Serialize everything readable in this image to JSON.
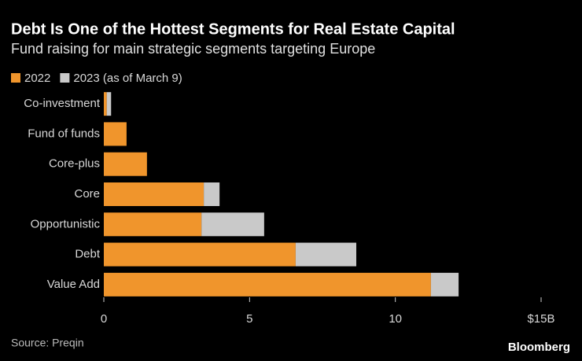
{
  "chart_data": {
    "type": "stacked-barh",
    "title": "Debt Is One of the Hottest Segments for Real Estate Capital",
    "subtitle": "Fund raising for main strategic segments targeting Europe",
    "categories": [
      "Co-investment",
      "Fund of funds",
      "Core-plus",
      "Core",
      "Opportunistic",
      "Debt",
      "Value Add"
    ],
    "series": [
      {
        "name": "2022",
        "color": "#f0952c",
        "values": [
          0.1,
          0.78,
          1.48,
          3.43,
          3.35,
          6.58,
          11.22
        ]
      },
      {
        "name": "2023 (as of March 9)",
        "color": "#c9c9c9",
        "values": [
          0.15,
          0,
          0,
          0.54,
          2.15,
          2.08,
          0.95
        ]
      }
    ],
    "xlim": [
      0,
      15
    ],
    "xticks": [
      0,
      5,
      10,
      {
        "value": 15,
        "label": "$15B"
      }
    ],
    "legend": "top-left",
    "source": "Source: Preqin",
    "logo": "Bloomberg"
  }
}
